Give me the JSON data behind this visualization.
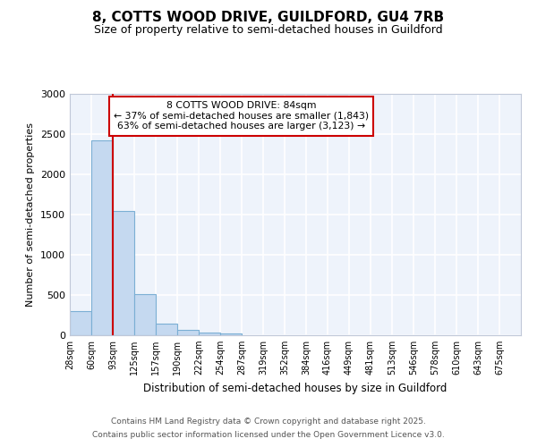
{
  "title_line1": "8, COTTS WOOD DRIVE, GUILDFORD, GU4 7RB",
  "title_line2": "Size of property relative to semi-detached houses in Guildford",
  "xlabel": "Distribution of semi-detached houses by size in Guildford",
  "ylabel": "Number of semi-detached properties",
  "bin_labels": [
    "28sqm",
    "60sqm",
    "93sqm",
    "125sqm",
    "157sqm",
    "190sqm",
    "222sqm",
    "254sqm",
    "287sqm",
    "319sqm",
    "352sqm",
    "384sqm",
    "416sqm",
    "449sqm",
    "481sqm",
    "513sqm",
    "546sqm",
    "578sqm",
    "610sqm",
    "643sqm",
    "675sqm"
  ],
  "bar_heights": [
    305,
    2420,
    1540,
    510,
    140,
    65,
    35,
    25,
    0,
    0,
    0,
    0,
    0,
    0,
    0,
    0,
    0,
    0,
    0,
    0,
    0
  ],
  "bar_color": "#c5d9f0",
  "bar_edge_color": "#7bafd4",
  "property_bin_index": 2,
  "property_line_color": "#cc0000",
  "annotation_text_line1": "8 COTTS WOOD DRIVE: 84sqm",
  "annotation_text_line2": "← 37% of semi-detached houses are smaller (1,843)",
  "annotation_text_line3": "63% of semi-detached houses are larger (3,123) →",
  "annotation_box_edgecolor": "#cc0000",
  "annotation_box_facecolor": "#ffffff",
  "ylim": [
    0,
    3000
  ],
  "yticks": [
    0,
    500,
    1000,
    1500,
    2000,
    2500,
    3000
  ],
  "background_color": "#eef3fb",
  "figure_bg": "#ffffff",
  "footnote_line1": "Contains HM Land Registry data © Crown copyright and database right 2025.",
  "footnote_line2": "Contains public sector information licensed under the Open Government Licence v3.0.",
  "grid_color": "#ffffff",
  "spine_color": "#c0c8d8"
}
